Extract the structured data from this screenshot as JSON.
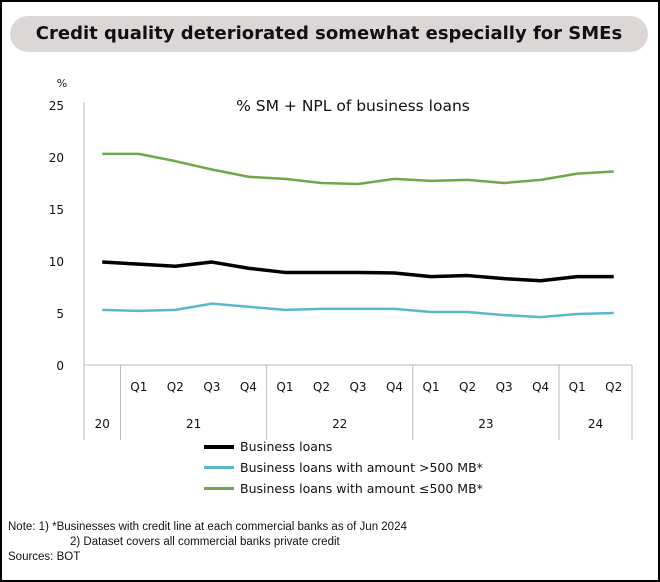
{
  "header": {
    "title": "Credit quality deteriorated somewhat especially for SMEs"
  },
  "chart_data": {
    "type": "line",
    "title": "% SM + NPL of business loans",
    "ylabel": "%",
    "ylim": [
      0,
      25
    ],
    "yticks": [
      "0",
      "5",
      "10",
      "15",
      "20",
      "25"
    ],
    "quarters": [
      "",
      "Q1",
      "Q2",
      "Q3",
      "Q4",
      "Q1",
      "Q2",
      "Q3",
      "Q4",
      "Q1",
      "Q2",
      "Q3",
      "Q4",
      "Q1",
      "Q2"
    ],
    "years": [
      {
        "label": "20",
        "span": 1
      },
      {
        "label": "21",
        "span": 4
      },
      {
        "label": "22",
        "span": 4
      },
      {
        "label": "23",
        "span": 4
      },
      {
        "label": "24",
        "span": 2
      }
    ],
    "series": [
      {
        "name": "Business loans",
        "color": "#000000",
        "values": [
          9.9,
          9.7,
          9.5,
          9.9,
          9.3,
          8.9,
          8.9,
          8.9,
          8.85,
          8.5,
          8.6,
          8.3,
          8.1,
          8.5,
          8.5
        ]
      },
      {
        "name": "Business loans with amount >500 MB*",
        "color": "#5bb7cc",
        "values": [
          5.3,
          5.2,
          5.3,
          5.9,
          5.6,
          5.3,
          5.4,
          5.4,
          5.4,
          5.1,
          5.1,
          4.8,
          4.6,
          4.9,
          5.0
        ]
      },
      {
        "name": "Business loans with amount ≤500 MB*",
        "color": "#6ea84a",
        "values": [
          20.3,
          20.3,
          19.6,
          18.8,
          18.1,
          17.9,
          17.5,
          17.4,
          17.9,
          17.7,
          17.8,
          17.5,
          17.8,
          18.4,
          18.6
        ]
      }
    ]
  },
  "notes": {
    "line1": "Note: 1) *Businesses with credit line at each commercial banks as of Jun 2024",
    "line2": "2)  Dataset covers all commercial banks private credit",
    "line3": "Sources: BOT"
  }
}
